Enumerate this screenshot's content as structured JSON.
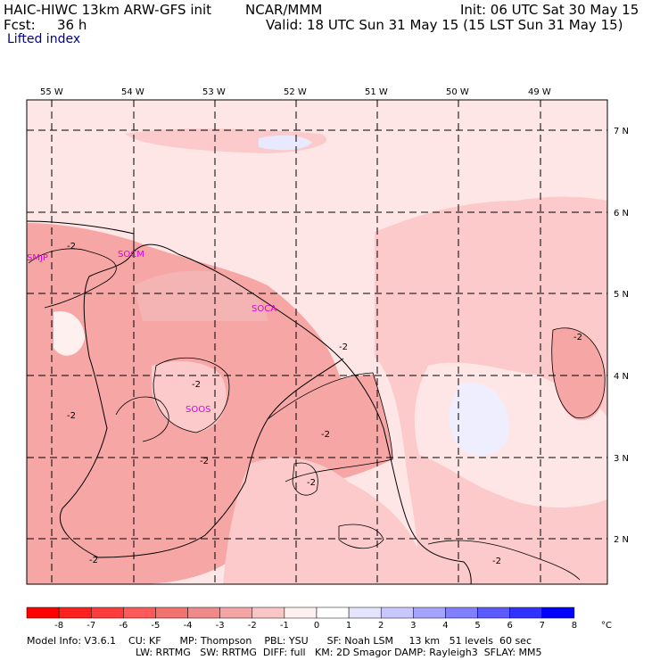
{
  "header": {
    "model": "HAIC-HIWC 13km ARW-GFS init",
    "org": "NCAR/MMM",
    "init": "Init: 06 UTC Sat 30 May 15",
    "fcst_label": "Fcst:",
    "fcst_value": "36 h",
    "valid": "Valid: 18 UTC Sun 31 May 15 (15 LST Sun 31 May 15)",
    "field": "Lifted index"
  },
  "map": {
    "lon_labels": [
      "55 W",
      "54 W",
      "53 W",
      "52 W",
      "51 W",
      "50 W",
      "49 W"
    ],
    "lat_labels": [
      "7 N",
      "6 N",
      "5 N",
      "4 N",
      "3 N",
      "2 N"
    ],
    "stations": [
      "SMJP",
      "SOCM",
      "SOCA",
      "SOOS"
    ],
    "contour_label": "-2",
    "colors": {
      "pale_pink": "#ffe6e6",
      "light_pink": "#fccaca",
      "pink": "#f7a6a6",
      "mid_red": "#f08080",
      "pale_blue": "#e8e8ff"
    }
  },
  "colorbar": {
    "tick_labels": [
      "-8",
      "-7",
      "-6",
      "-5",
      "-4",
      "-3",
      "-2",
      "-1",
      "0",
      "1",
      "2",
      "3",
      "4",
      "5",
      "6",
      "7",
      "8"
    ],
    "unit": "°C",
    "colors": [
      "#ff0000",
      "#ff2020",
      "#ff3c3c",
      "#ff5a5a",
      "#f27272",
      "#f08a8a",
      "#f4a4a4",
      "#f9c6c6",
      "#fff0f0",
      "#ffffff",
      "#e4e4ff",
      "#c8c8ff",
      "#a4a4ff",
      "#8080ff",
      "#5a5aff",
      "#3232ff",
      "#0000ff"
    ]
  },
  "footer": {
    "line1": "Model Info: V3.6.1    CU: KF      MP: Thompson    PBL: YSU      SF: Noah LSM     13 km   51 levels  60 sec",
    "line2": "LW: RRTMG   SW: RRTMG  DIFF: full   KM: 2D Smagor DAMP: Rayleigh3  SFLAY: MM5"
  }
}
